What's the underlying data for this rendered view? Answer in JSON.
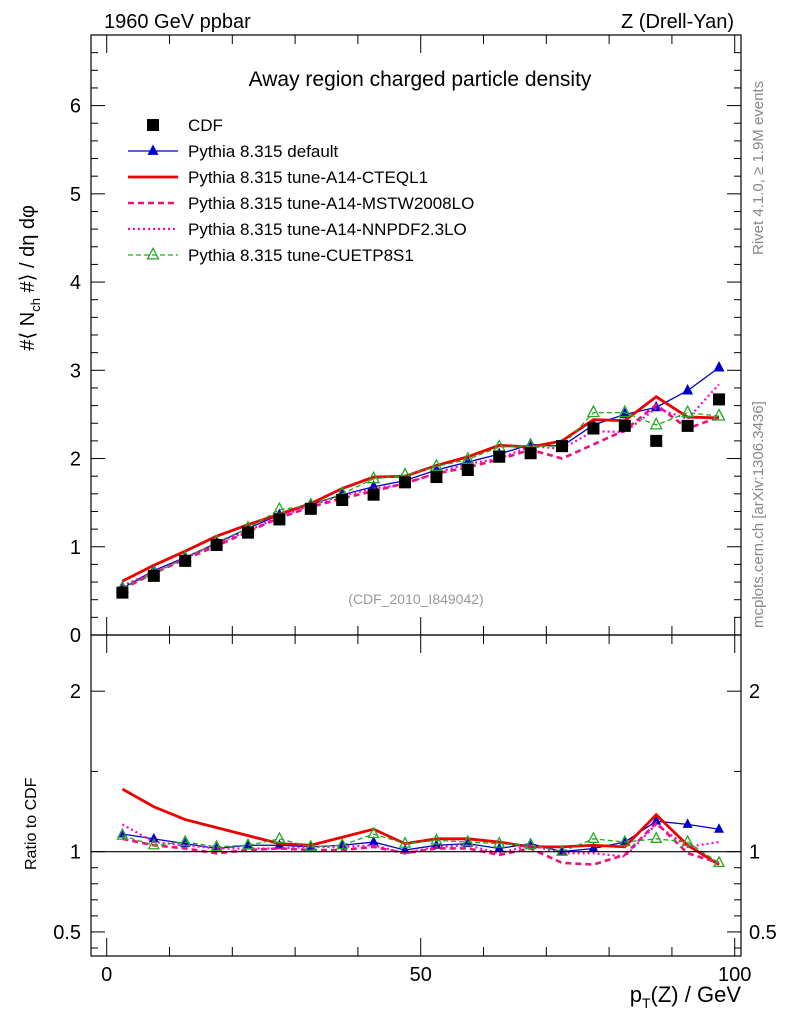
{
  "header": {
    "left": "1960 GeV ppbar",
    "right": "Z (Drell-Yan)"
  },
  "side_labels": {
    "rivet": "Rivet 4.1.0, ≥ 1.9M events",
    "mcplots": "mcplots.cern.ch [arXiv:1306.3436]"
  },
  "watermark": "(CDF_2010_I849042)",
  "chart_data": [
    {
      "panel": "main",
      "type": "line",
      "title": "Away region charged particle density",
      "ylabel_parts": [
        "#⟨ N",
        "ch",
        " #⟩ / dη dφ"
      ],
      "xlabel_parts": [
        "p",
        "T",
        "(Z) / GeV"
      ],
      "xlim": [
        -2.5,
        101
      ],
      "ylim": [
        0,
        6.8
      ],
      "yticks": [
        {
          "value": 0,
          "label": "0"
        },
        {
          "value": 1,
          "label": "1"
        },
        {
          "value": 2,
          "label": "2"
        },
        {
          "value": 3,
          "label": "3"
        },
        {
          "value": 4,
          "label": "4"
        },
        {
          "value": 5,
          "label": "5"
        },
        {
          "value": 6,
          "label": "6"
        }
      ],
      "x": [
        2.5,
        7.5,
        12.5,
        17.5,
        22.5,
        27.5,
        32.5,
        37.5,
        42.5,
        47.5,
        52.5,
        57.5,
        62.5,
        67.5,
        72.5,
        77.5,
        82.5,
        87.5,
        92.5,
        97.5
      ],
      "series": [
        {
          "name": "CDF",
          "color": "#000000",
          "style": "data",
          "marker": "square",
          "values": [
            0.48,
            0.67,
            0.84,
            1.02,
            1.16,
            1.31,
            1.43,
            1.53,
            1.59,
            1.73,
            1.79,
            1.87,
            2.02,
            2.06,
            2.14,
            2.34,
            2.37,
            2.2,
            2.37,
            2.67
          ]
        },
        {
          "name": "Pythia 8.315 default",
          "color": "#0000cc",
          "style": "solid-thin",
          "marker": "triangle-filled",
          "values": [
            0.53,
            0.73,
            0.88,
            1.04,
            1.21,
            1.36,
            1.48,
            1.59,
            1.68,
            1.75,
            1.87,
            1.96,
            2.05,
            2.16,
            2.14,
            2.38,
            2.5,
            2.58,
            2.77,
            3.03
          ]
        },
        {
          "name": "Pythia 8.315 tune-A14-CTEQL1",
          "color": "#ee0000",
          "style": "solid-thick",
          "marker": "none",
          "values": [
            0.61,
            0.79,
            0.95,
            1.12,
            1.25,
            1.37,
            1.49,
            1.66,
            1.79,
            1.8,
            1.92,
            2.02,
            2.15,
            2.13,
            2.2,
            2.44,
            2.43,
            2.7,
            2.47,
            2.46
          ]
        },
        {
          "name": "Pythia 8.315 tune-A14-MSTW2008LO",
          "color": "#ee1177",
          "style": "dashed",
          "marker": "none",
          "values": [
            0.52,
            0.7,
            0.86,
            1.01,
            1.17,
            1.33,
            1.45,
            1.55,
            1.63,
            1.72,
            1.83,
            1.9,
            1.99,
            2.1,
            2.0,
            2.16,
            2.32,
            2.61,
            2.34,
            2.47
          ]
        },
        {
          "name": "Pythia 8.315 tune-A14-NNPDF2.3LO",
          "color": "#ff00cc",
          "style": "dotted",
          "marker": "none",
          "values": [
            0.56,
            0.71,
            0.87,
            1.04,
            1.18,
            1.34,
            1.47,
            1.58,
            1.66,
            1.71,
            1.84,
            1.94,
            2.0,
            2.14,
            2.11,
            2.31,
            2.3,
            2.57,
            2.45,
            2.84
          ]
        },
        {
          "name": "Pythia 8.315 tune-CUETP8S1",
          "color": "#22aa22",
          "style": "dashed-fine",
          "marker": "triangle-open",
          "values": [
            0.53,
            0.7,
            0.87,
            1.05,
            1.21,
            1.42,
            1.47,
            1.6,
            1.77,
            1.81,
            1.91,
            1.99,
            2.13,
            2.14,
            2.14,
            2.52,
            2.52,
            2.38,
            2.52,
            2.48
          ]
        }
      ]
    },
    {
      "panel": "ratio",
      "type": "line",
      "ylabel": "Ratio to CDF",
      "xlim": [
        -2.5,
        101
      ],
      "ylim": [
        0.35,
        2.35
      ],
      "yticks": [
        {
          "value": 0.5,
          "label": "0.5"
        },
        {
          "value": 1,
          "label": "1"
        },
        {
          "value": 2,
          "label": "2"
        }
      ],
      "xticks": [
        {
          "value": 0,
          "label": "0"
        },
        {
          "value": 50,
          "label": "50"
        },
        {
          "value": 100,
          "label": "100"
        }
      ],
      "series": [
        {
          "name": "Pythia 8.315 default",
          "values": [
            1.11,
            1.08,
            1.05,
            1.02,
            1.04,
            1.04,
            1.03,
            1.04,
            1.06,
            1.01,
            1.04,
            1.05,
            1.02,
            1.05,
            1.0,
            1.02,
            1.06,
            1.19,
            1.17,
            1.14
          ]
        },
        {
          "name": "Pythia 8.315 tune-A14-CTEQL1",
          "values": [
            1.39,
            1.28,
            1.2,
            1.15,
            1.1,
            1.05,
            1.04,
            1.09,
            1.14,
            1.05,
            1.08,
            1.08,
            1.06,
            1.03,
            1.03,
            1.04,
            1.03,
            1.23,
            1.04,
            0.92
          ]
        },
        {
          "name": "Pythia 8.315 tune-A14-MSTW2008LO",
          "values": [
            1.08,
            1.04,
            1.02,
            0.99,
            1.01,
            1.02,
            1.01,
            1.01,
            1.03,
            0.99,
            1.02,
            1.02,
            0.98,
            1.02,
            0.93,
            0.92,
            0.98,
            1.18,
            0.99,
            0.93
          ]
        },
        {
          "name": "Pythia 8.315 tune-A14-NNPDF2.3LO",
          "values": [
            1.17,
            1.06,
            1.04,
            1.02,
            1.02,
            1.02,
            1.03,
            1.03,
            1.04,
            0.99,
            1.03,
            1.04,
            0.99,
            1.04,
            0.99,
            0.99,
            0.97,
            1.17,
            1.03,
            1.06
          ]
        },
        {
          "name": "Pythia 8.315 tune-CUETP8S1",
          "values": [
            1.1,
            1.04,
            1.06,
            1.03,
            1.04,
            1.08,
            1.03,
            1.04,
            1.11,
            1.05,
            1.07,
            1.06,
            1.05,
            1.04,
            1.0,
            1.08,
            1.06,
            1.08,
            1.06,
            0.93
          ]
        }
      ]
    }
  ]
}
